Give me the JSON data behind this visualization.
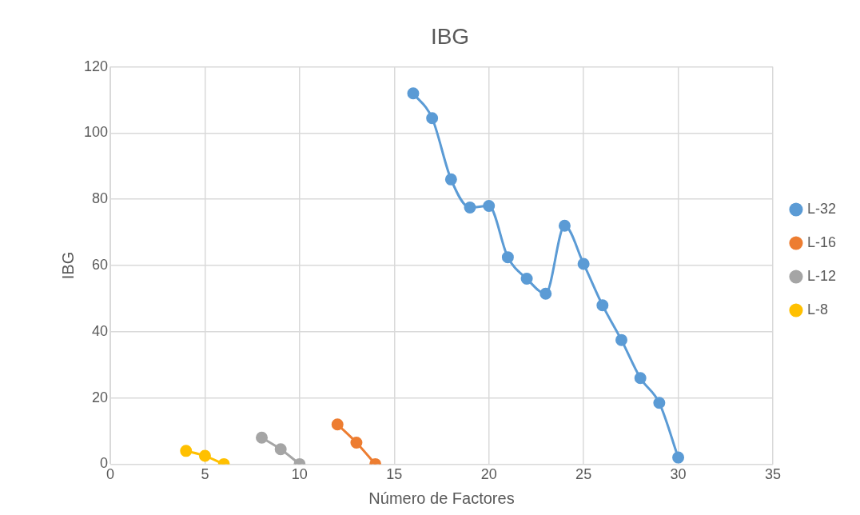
{
  "chart_data": {
    "type": "line",
    "title": "IBG",
    "xlabel": "Número de Factores",
    "ylabel": "IBG",
    "xlim": [
      0,
      35
    ],
    "xticks": [
      0,
      5,
      10,
      15,
      20,
      25,
      30,
      35
    ],
    "ylim": [
      0,
      120
    ],
    "yticks": [
      0,
      20,
      40,
      60,
      80,
      100,
      120
    ],
    "grid": true,
    "legend": "right",
    "marker": "circle",
    "line_style": "solid",
    "series": [
      {
        "name": "L-32",
        "color": "#5b9bd5",
        "x": [
          16,
          17,
          18,
          19,
          20,
          21,
          22,
          23,
          24,
          25,
          26,
          27,
          28,
          29,
          30
        ],
        "values": [
          112,
          104.5,
          86,
          77.5,
          78,
          62.5,
          56,
          51.5,
          72,
          60.5,
          48,
          37.5,
          26,
          18.5,
          2
        ]
      },
      {
        "name": "L-16",
        "color": "#ed7d31",
        "x": [
          12,
          13,
          14
        ],
        "values": [
          12,
          6.5,
          0
        ]
      },
      {
        "name": "L-12",
        "color": "#a5a5a5",
        "x": [
          8,
          9,
          10
        ],
        "values": [
          8,
          4.5,
          0
        ]
      },
      {
        "name": "L-8",
        "color": "#ffc000",
        "x": [
          4,
          5,
          6
        ],
        "values": [
          4,
          2.5,
          0
        ]
      }
    ]
  }
}
